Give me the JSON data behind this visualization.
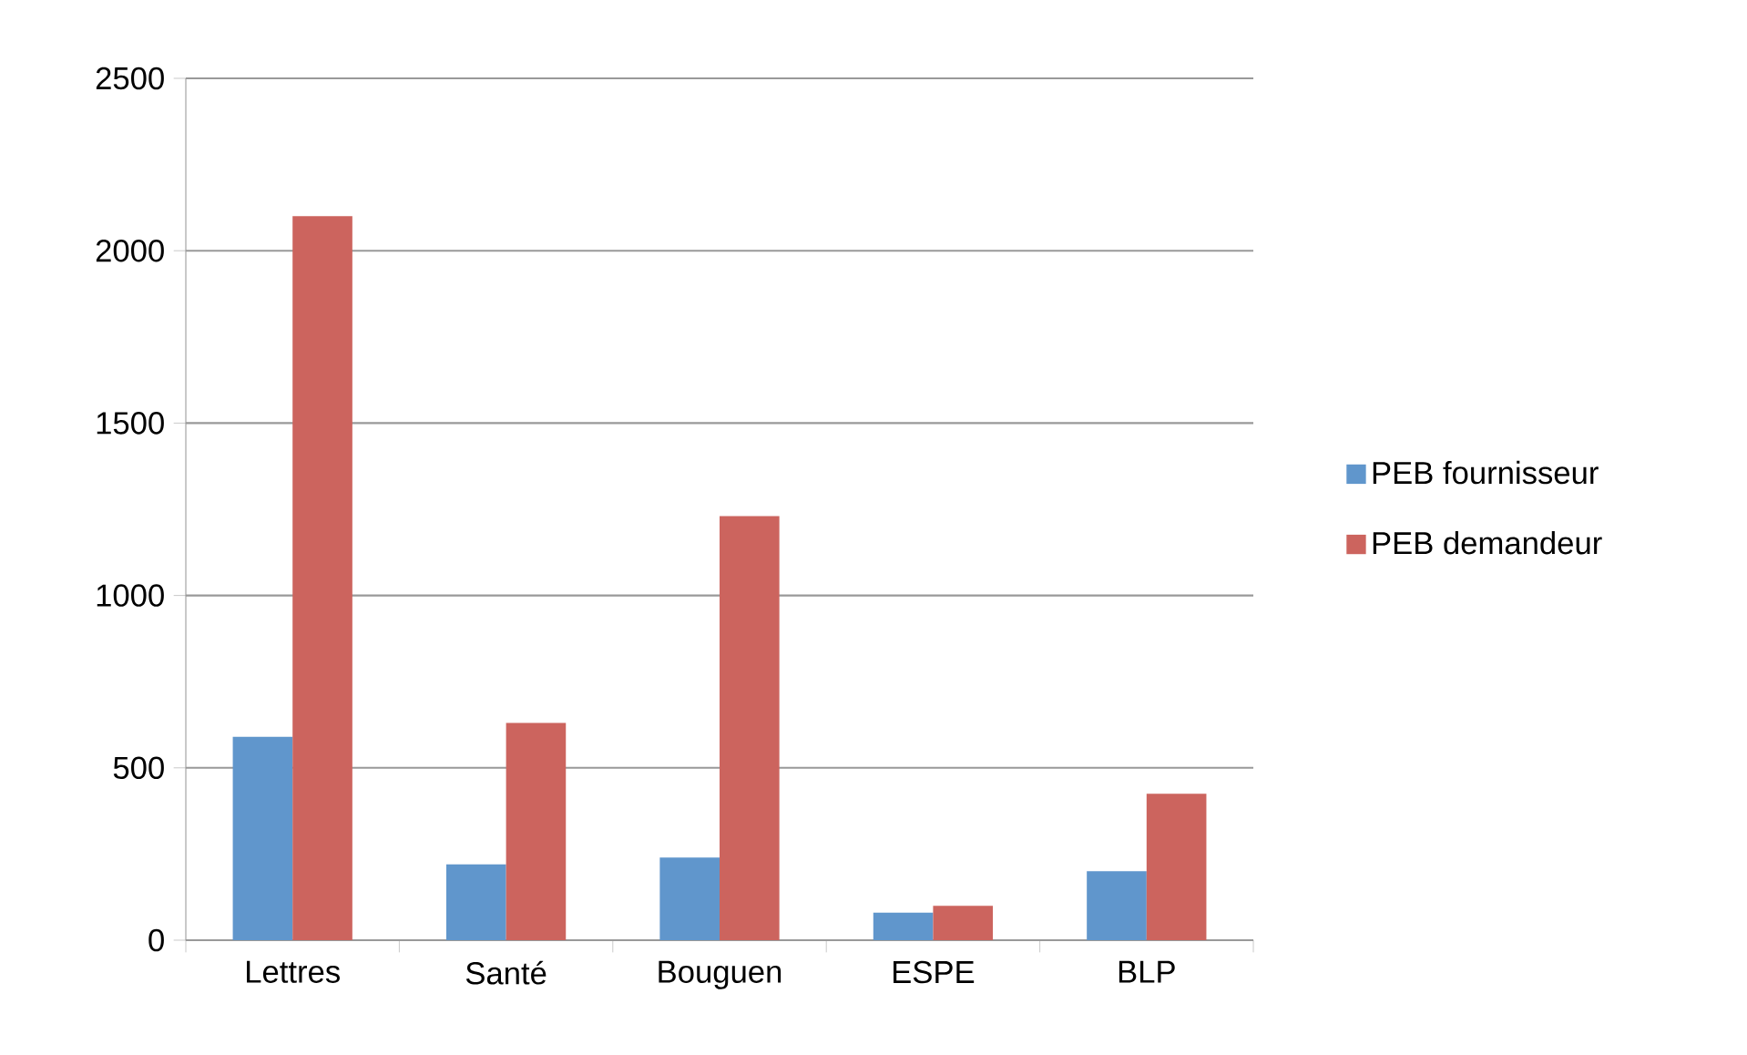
{
  "chart_data": {
    "type": "bar",
    "categories": [
      "Lettres",
      "Santé",
      "Bouguen",
      "ESPE",
      "BLP"
    ],
    "series": [
      {
        "name": "PEB fournisseur",
        "color": "#6096cc",
        "values": [
          590,
          220,
          240,
          80,
          200
        ]
      },
      {
        "name": "PEB demandeur",
        "color": "#cc645e",
        "values": [
          2100,
          630,
          1230,
          100,
          425
        ]
      }
    ],
    "ylim": [
      0,
      2500
    ],
    "yticks": [
      0,
      500,
      1000,
      1500,
      2000,
      2500
    ],
    "grid": "y",
    "legend": "right"
  }
}
